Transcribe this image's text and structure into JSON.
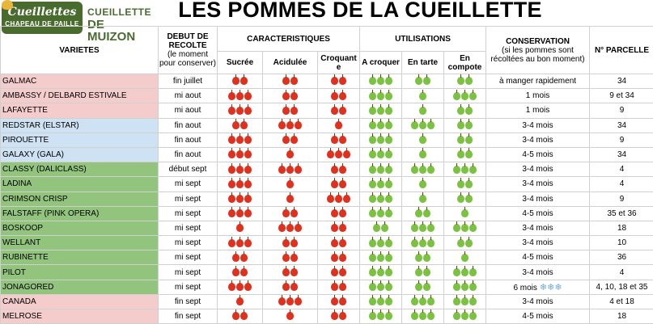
{
  "logo": {
    "brand": "Cueillettes",
    "tagline": "CHAPEAU DE PAILLE",
    "line1": "CUEILLETTE",
    "line2": "DE MUIZON"
  },
  "title": "LES POMMES DE LA CUEILLETTE",
  "headers": {
    "varietes": "VARIETES",
    "debut": "DEBUT DE RECOLTE",
    "debut_sub": "(le moment pour conserver)",
    "caracteristiques": "CARACTERISTIQUES",
    "sucree": "Sucrée",
    "acidulee": "Acidulée",
    "croquante": "Croquant e",
    "utilisations": "UTILISATIONS",
    "a_croquer": "A croquer",
    "en_tarte": "En tarte",
    "en_compote": "En compote",
    "conservation": "CONSERVATION",
    "conservation_sub": "(si les pommes sont récoltées au bon moment)",
    "parcelle": "N° PARCELLE"
  },
  "rows": [
    {
      "variete": "GALMAC",
      "color": "red",
      "debut": "fin juillet",
      "sucree": 2,
      "acidulee": 2,
      "croquante": 2,
      "croquer": 3,
      "tarte": 2,
      "compote": 2,
      "conservation": "à manger rapidement",
      "parcelle": "34"
    },
    {
      "variete": "AMBASSY / DELBARD ESTIVALE",
      "color": "red",
      "debut": "mi aout",
      "sucree": 3,
      "acidulee": 2,
      "croquante": 2,
      "croquer": 3,
      "tarte": 1,
      "compote": 3,
      "conservation": "1 mois",
      "parcelle": "9 et 34"
    },
    {
      "variete": "LAFAYETTE",
      "color": "red",
      "debut": "mi aout",
      "sucree": 3,
      "acidulee": 2,
      "croquante": 2,
      "croquer": 3,
      "tarte": 1,
      "compote": 2,
      "conservation": "1 mois",
      "parcelle": "9"
    },
    {
      "variete": "REDSTAR (ELSTAR)",
      "color": "blue",
      "debut": "fin aout",
      "sucree": 2,
      "acidulee": 3,
      "croquante": 1,
      "croquer": 3,
      "tarte": 3,
      "compote": 2,
      "conservation": "3-4 mois",
      "parcelle": "34"
    },
    {
      "variete": "PIROUETTE",
      "color": "blue",
      "debut": "fin aout",
      "sucree": 3,
      "acidulee": 2,
      "croquante": 2,
      "croquer": 3,
      "tarte": 1,
      "compote": 2,
      "conservation": "3-4 mois",
      "parcelle": "9"
    },
    {
      "variete": "GALAXY (GALA)",
      "color": "blue",
      "debut": "fin aout",
      "sucree": 3,
      "acidulee": 1,
      "croquante": 3,
      "croquer": 3,
      "tarte": 1,
      "compote": 2,
      "conservation": "4-5 mois",
      "parcelle": "34"
    },
    {
      "variete": "CLASSY (DALICLASS)",
      "color": "green",
      "debut": "début sept",
      "sucree": 3,
      "acidulee": 3,
      "croquante": 2,
      "croquer": 3,
      "tarte": 3,
      "compote": 3,
      "conservation": "3-4 mois",
      "parcelle": "4"
    },
    {
      "variete": "LADINA",
      "color": "green",
      "debut": "mi sept",
      "sucree": 3,
      "acidulee": 1,
      "croquante": 2,
      "croquer": 3,
      "tarte": 1,
      "compote": 2,
      "conservation": "3-4 mois",
      "parcelle": "4"
    },
    {
      "variete": "CRIMSON CRISP",
      "color": "green",
      "debut": "mi sept",
      "sucree": 3,
      "acidulee": 1,
      "croquante": 3,
      "croquer": 3,
      "tarte": 1,
      "compote": 2,
      "conservation": "3-4 mois",
      "parcelle": "9"
    },
    {
      "variete": "FALSTAFF (PINK OPERA)",
      "color": "green",
      "debut": "mi sept",
      "sucree": 3,
      "acidulee": 2,
      "croquante": 2,
      "croquer": 3,
      "tarte": 2,
      "compote": 1,
      "conservation": "4-5 mois",
      "parcelle": "35 et 36"
    },
    {
      "variete": "BOSKOOP",
      "color": "green",
      "debut": "mi sept",
      "sucree": 1,
      "acidulee": 3,
      "croquante": 2,
      "croquer": 2,
      "tarte": 3,
      "compote": 3,
      "conservation": "3-4 mois",
      "parcelle": "18"
    },
    {
      "variete": "WELLANT",
      "color": "green",
      "debut": "mi sept",
      "sucree": 3,
      "acidulee": 2,
      "croquante": 2,
      "croquer": 3,
      "tarte": 3,
      "compote": 2,
      "conservation": "3-4 mois",
      "parcelle": "10"
    },
    {
      "variete": "RUBINETTE",
      "color": "green",
      "debut": "mi sept",
      "sucree": 2,
      "acidulee": 2,
      "croquante": 2,
      "croquer": 3,
      "tarte": 2,
      "compote": 1,
      "conservation": "4-5 mois",
      "parcelle": "36"
    },
    {
      "variete": "PILOT",
      "color": "green",
      "debut": "mi sept",
      "sucree": 2,
      "acidulee": 2,
      "croquante": 2,
      "croquer": 3,
      "tarte": 2,
      "compote": 3,
      "conservation": "3-4 mois",
      "parcelle": "4"
    },
    {
      "variete": "JONAGORED",
      "color": "green",
      "debut": "mi sept",
      "sucree": 3,
      "acidulee": 2,
      "croquante": 2,
      "croquer": 3,
      "tarte": 2,
      "compote": 3,
      "conservation": "6 mois",
      "snow": "❄❄❄",
      "parcelle": "4, 10, 18 et 35"
    },
    {
      "variete": "CANADA",
      "color": "red",
      "debut": "fin sept",
      "sucree": 1,
      "acidulee": 3,
      "croquante": 2,
      "croquer": 3,
      "tarte": 3,
      "compote": 3,
      "conservation": "3-4 mois",
      "parcelle": "4 et 18"
    },
    {
      "variete": "MELROSE",
      "color": "red",
      "debut": "fin sept",
      "sucree": 2,
      "acidulee": 1,
      "croquante": 2,
      "croquer": 3,
      "tarte": 3,
      "compote": 3,
      "conservation": "4-5 mois",
      "parcelle": "18"
    }
  ],
  "colors": {
    "red_apple": "#e0301e",
    "green_apple": "#7cc242",
    "early": "#f4cccc",
    "mid": "#cfe2f3",
    "late": "#93c47d"
  }
}
